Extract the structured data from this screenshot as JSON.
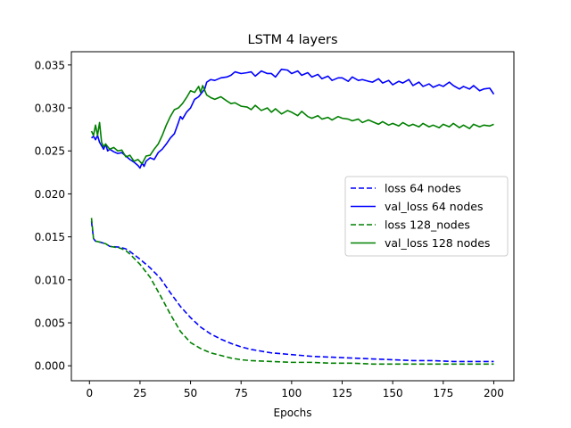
{
  "chart_data": {
    "type": "line",
    "title": "LSTM 4 layers",
    "xlabel": "Epochs",
    "ylabel": "",
    "xlim": [
      -8.95,
      209.95
    ],
    "ylim": [
      -0.00174,
      0.03654
    ],
    "xticks": [
      0,
      25,
      50,
      75,
      100,
      125,
      150,
      175,
      200
    ],
    "yticks": [
      0.0,
      0.005,
      0.01,
      0.015,
      0.02,
      0.025,
      0.03,
      0.035
    ],
    "ytick_labels": [
      "0.000",
      "0.005",
      "0.010",
      "0.015",
      "0.020",
      "0.025",
      "0.030",
      "0.035"
    ],
    "grid": false,
    "legend_position": "center right",
    "series": [
      {
        "name": "loss 64 nodes",
        "color": "#0000ff",
        "dash": "dashed",
        "points": [
          [
            1,
            0.0168
          ],
          [
            2,
            0.0148
          ],
          [
            3,
            0.0145
          ],
          [
            5,
            0.0144
          ],
          [
            8,
            0.0142
          ],
          [
            10,
            0.0139
          ],
          [
            15,
            0.0138
          ],
          [
            18,
            0.0136
          ],
          [
            20,
            0.0133
          ],
          [
            25,
            0.0124
          ],
          [
            30,
            0.0114
          ],
          [
            35,
            0.0102
          ],
          [
            40,
            0.0085
          ],
          [
            45,
            0.0069
          ],
          [
            50,
            0.0056
          ],
          [
            55,
            0.0045
          ],
          [
            60,
            0.0037
          ],
          [
            65,
            0.0031
          ],
          [
            70,
            0.0026
          ],
          [
            75,
            0.0022
          ],
          [
            80,
            0.0019
          ],
          [
            90,
            0.0015
          ],
          [
            100,
            0.0013
          ],
          [
            110,
            0.0011
          ],
          [
            120,
            0.001
          ],
          [
            130,
            0.0009
          ],
          [
            140,
            0.0008
          ],
          [
            150,
            0.0007
          ],
          [
            160,
            0.0006
          ],
          [
            170,
            0.0006
          ],
          [
            180,
            0.0005
          ],
          [
            190,
            0.0005
          ],
          [
            200,
            0.0005
          ]
        ]
      },
      {
        "name": "val_loss 64 nodes",
        "color": "#0000ff",
        "dash": "solid",
        "points": [
          [
            1,
            0.0265
          ],
          [
            2,
            0.0267
          ],
          [
            3,
            0.0263
          ],
          [
            4,
            0.0268
          ],
          [
            5,
            0.026
          ],
          [
            6,
            0.0256
          ],
          [
            7,
            0.0252
          ],
          [
            8,
            0.0258
          ],
          [
            9,
            0.025
          ],
          [
            10,
            0.0252
          ],
          [
            12,
            0.0249
          ],
          [
            14,
            0.0247
          ],
          [
            16,
            0.0248
          ],
          [
            18,
            0.0244
          ],
          [
            20,
            0.024
          ],
          [
            22,
            0.0237
          ],
          [
            24,
            0.0233
          ],
          [
            25,
            0.023
          ],
          [
            26,
            0.0236
          ],
          [
            27,
            0.0232
          ],
          [
            28,
            0.0238
          ],
          [
            30,
            0.0242
          ],
          [
            32,
            0.024
          ],
          [
            34,
            0.0248
          ],
          [
            36,
            0.0252
          ],
          [
            38,
            0.0258
          ],
          [
            40,
            0.0265
          ],
          [
            42,
            0.027
          ],
          [
            44,
            0.0283
          ],
          [
            45,
            0.029
          ],
          [
            46,
            0.0287
          ],
          [
            48,
            0.0295
          ],
          [
            50,
            0.03
          ],
          [
            52,
            0.031
          ],
          [
            54,
            0.0313
          ],
          [
            55,
            0.0316
          ],
          [
            57,
            0.0322
          ],
          [
            58,
            0.033
          ],
          [
            60,
            0.0333
          ],
          [
            62,
            0.0332
          ],
          [
            65,
            0.0335
          ],
          [
            68,
            0.0336
          ],
          [
            70,
            0.0338
          ],
          [
            72,
            0.0342
          ],
          [
            75,
            0.034
          ],
          [
            78,
            0.0341
          ],
          [
            80,
            0.0342
          ],
          [
            82,
            0.0337
          ],
          [
            85,
            0.0343
          ],
          [
            88,
            0.034
          ],
          [
            90,
            0.034
          ],
          [
            92,
            0.0336
          ],
          [
            95,
            0.0345
          ],
          [
            98,
            0.0344
          ],
          [
            100,
            0.034
          ],
          [
            103,
            0.0343
          ],
          [
            105,
            0.0338
          ],
          [
            108,
            0.0341
          ],
          [
            110,
            0.0336
          ],
          [
            113,
            0.0339
          ],
          [
            115,
            0.0334
          ],
          [
            118,
            0.0337
          ],
          [
            120,
            0.0332
          ],
          [
            123,
            0.0335
          ],
          [
            125,
            0.0335
          ],
          [
            128,
            0.0331
          ],
          [
            130,
            0.0336
          ],
          [
            133,
            0.0332
          ],
          [
            135,
            0.0333
          ],
          [
            138,
            0.0331
          ],
          [
            140,
            0.033
          ],
          [
            143,
            0.0334
          ],
          [
            145,
            0.0329
          ],
          [
            148,
            0.0332
          ],
          [
            150,
            0.0327
          ],
          [
            153,
            0.0331
          ],
          [
            155,
            0.0329
          ],
          [
            158,
            0.0333
          ],
          [
            160,
            0.0326
          ],
          [
            163,
            0.033
          ],
          [
            165,
            0.0325
          ],
          [
            168,
            0.0328
          ],
          [
            170,
            0.0324
          ],
          [
            173,
            0.0327
          ],
          [
            175,
            0.0325
          ],
          [
            178,
            0.033
          ],
          [
            180,
            0.0326
          ],
          [
            183,
            0.0322
          ],
          [
            185,
            0.0325
          ],
          [
            188,
            0.0322
          ],
          [
            190,
            0.0326
          ],
          [
            193,
            0.032
          ],
          [
            195,
            0.0322
          ],
          [
            198,
            0.0323
          ],
          [
            200,
            0.0316
          ]
        ]
      },
      {
        "name": "loss 128_nodes",
        "color": "#008000",
        "dash": "dashed",
        "points": [
          [
            1,
            0.0172
          ],
          [
            2,
            0.0148
          ],
          [
            3,
            0.0145
          ],
          [
            5,
            0.0144
          ],
          [
            8,
            0.0142
          ],
          [
            10,
            0.0139
          ],
          [
            15,
            0.0137
          ],
          [
            18,
            0.0134
          ],
          [
            20,
            0.013
          ],
          [
            25,
            0.0118
          ],
          [
            30,
            0.0103
          ],
          [
            35,
            0.0082
          ],
          [
            40,
            0.006
          ],
          [
            45,
            0.004
          ],
          [
            50,
            0.0027
          ],
          [
            55,
            0.002
          ],
          [
            60,
            0.0015
          ],
          [
            65,
            0.0012
          ],
          [
            70,
            0.0009
          ],
          [
            75,
            0.0007
          ],
          [
            80,
            0.0006
          ],
          [
            90,
            0.0005
          ],
          [
            100,
            0.0004
          ],
          [
            110,
            0.0004
          ],
          [
            120,
            0.0003
          ],
          [
            130,
            0.0003
          ],
          [
            140,
            0.0002
          ],
          [
            150,
            0.0002
          ],
          [
            160,
            0.0002
          ],
          [
            170,
            0.0002
          ],
          [
            180,
            0.0002
          ],
          [
            190,
            0.0002
          ],
          [
            200,
            0.0002
          ]
        ]
      },
      {
        "name": "val_loss 128 nodes",
        "color": "#008000",
        "dash": "solid",
        "points": [
          [
            1,
            0.0273
          ],
          [
            2,
            0.0268
          ],
          [
            3,
            0.028
          ],
          [
            4,
            0.0268
          ],
          [
            5,
            0.0283
          ],
          [
            6,
            0.026
          ],
          [
            7,
            0.0255
          ],
          [
            8,
            0.0258
          ],
          [
            10,
            0.0252
          ],
          [
            12,
            0.0254
          ],
          [
            14,
            0.025
          ],
          [
            16,
            0.0251
          ],
          [
            18,
            0.0243
          ],
          [
            20,
            0.0245
          ],
          [
            22,
            0.0238
          ],
          [
            24,
            0.024
          ],
          [
            26,
            0.0235
          ],
          [
            28,
            0.0244
          ],
          [
            30,
            0.0245
          ],
          [
            32,
            0.0252
          ],
          [
            34,
            0.0258
          ],
          [
            36,
            0.0268
          ],
          [
            38,
            0.028
          ],
          [
            40,
            0.029
          ],
          [
            42,
            0.0298
          ],
          [
            44,
            0.03
          ],
          [
            46,
            0.0305
          ],
          [
            48,
            0.0312
          ],
          [
            50,
            0.032
          ],
          [
            52,
            0.0318
          ],
          [
            54,
            0.0325
          ],
          [
            55,
            0.0318
          ],
          [
            56,
            0.0326
          ],
          [
            58,
            0.0315
          ],
          [
            60,
            0.0312
          ],
          [
            62,
            0.031
          ],
          [
            65,
            0.0313
          ],
          [
            68,
            0.0308
          ],
          [
            70,
            0.0305
          ],
          [
            72,
            0.0306
          ],
          [
            75,
            0.0302
          ],
          [
            78,
            0.0301
          ],
          [
            80,
            0.0298
          ],
          [
            82,
            0.0303
          ],
          [
            85,
            0.0297
          ],
          [
            88,
            0.03
          ],
          [
            90,
            0.0295
          ],
          [
            92,
            0.0299
          ],
          [
            95,
            0.0293
          ],
          [
            98,
            0.0297
          ],
          [
            100,
            0.0295
          ],
          [
            103,
            0.0291
          ],
          [
            105,
            0.0296
          ],
          [
            108,
            0.029
          ],
          [
            110,
            0.0288
          ],
          [
            113,
            0.0291
          ],
          [
            115,
            0.0287
          ],
          [
            118,
            0.0289
          ],
          [
            120,
            0.0286
          ],
          [
            123,
            0.029
          ],
          [
            125,
            0.0288
          ],
          [
            128,
            0.0287
          ],
          [
            130,
            0.0285
          ],
          [
            133,
            0.0287
          ],
          [
            135,
            0.0283
          ],
          [
            138,
            0.0286
          ],
          [
            140,
            0.0284
          ],
          [
            143,
            0.0281
          ],
          [
            145,
            0.0284
          ],
          [
            148,
            0.028
          ],
          [
            150,
            0.0282
          ],
          [
            153,
            0.0279
          ],
          [
            155,
            0.0283
          ],
          [
            158,
            0.0279
          ],
          [
            160,
            0.0281
          ],
          [
            163,
            0.0278
          ],
          [
            165,
            0.0282
          ],
          [
            168,
            0.0278
          ],
          [
            170,
            0.028
          ],
          [
            173,
            0.0277
          ],
          [
            175,
            0.0281
          ],
          [
            178,
            0.0278
          ],
          [
            180,
            0.0282
          ],
          [
            183,
            0.0277
          ],
          [
            185,
            0.028
          ],
          [
            188,
            0.0276
          ],
          [
            190,
            0.0281
          ],
          [
            193,
            0.0278
          ],
          [
            195,
            0.028
          ],
          [
            198,
            0.0279
          ],
          [
            200,
            0.0281
          ]
        ]
      }
    ]
  }
}
